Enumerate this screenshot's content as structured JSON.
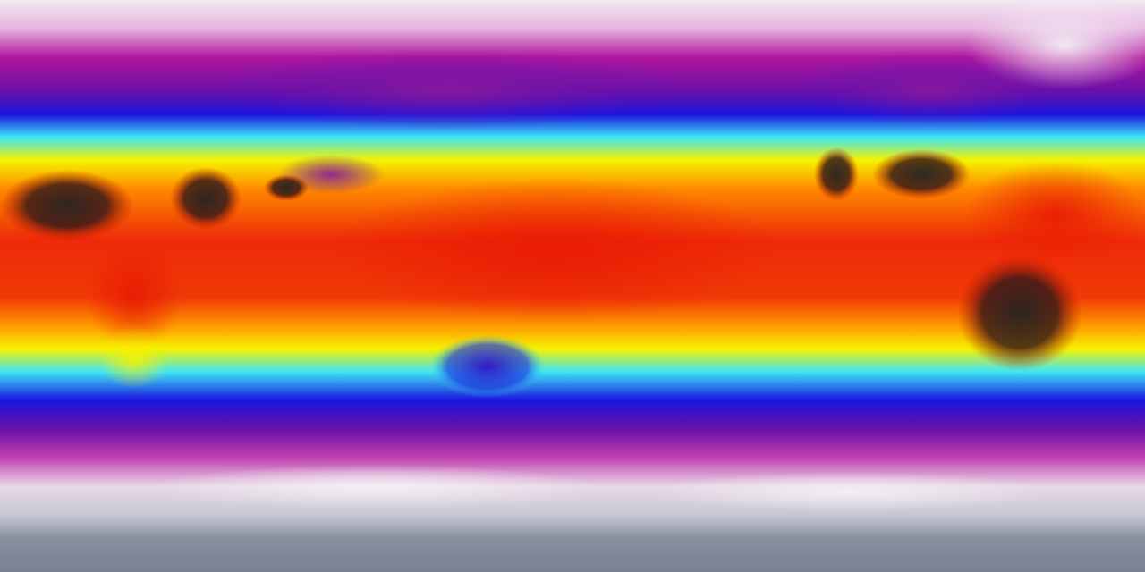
{
  "map": {
    "projection": "equirectangular",
    "kind": "global false-color field",
    "palette": {
      "polar_white": "#f2e4f0",
      "magenta": "#b0179e",
      "purple": "#6a10a8",
      "blue": "#1a14e0",
      "cyan": "#3fe6f4",
      "yellow": "#f6f200",
      "orange": "#ff8a00",
      "red": "#ee2a08",
      "dark": "#2a2226",
      "antarctic_gray": "#8a90a0"
    }
  }
}
